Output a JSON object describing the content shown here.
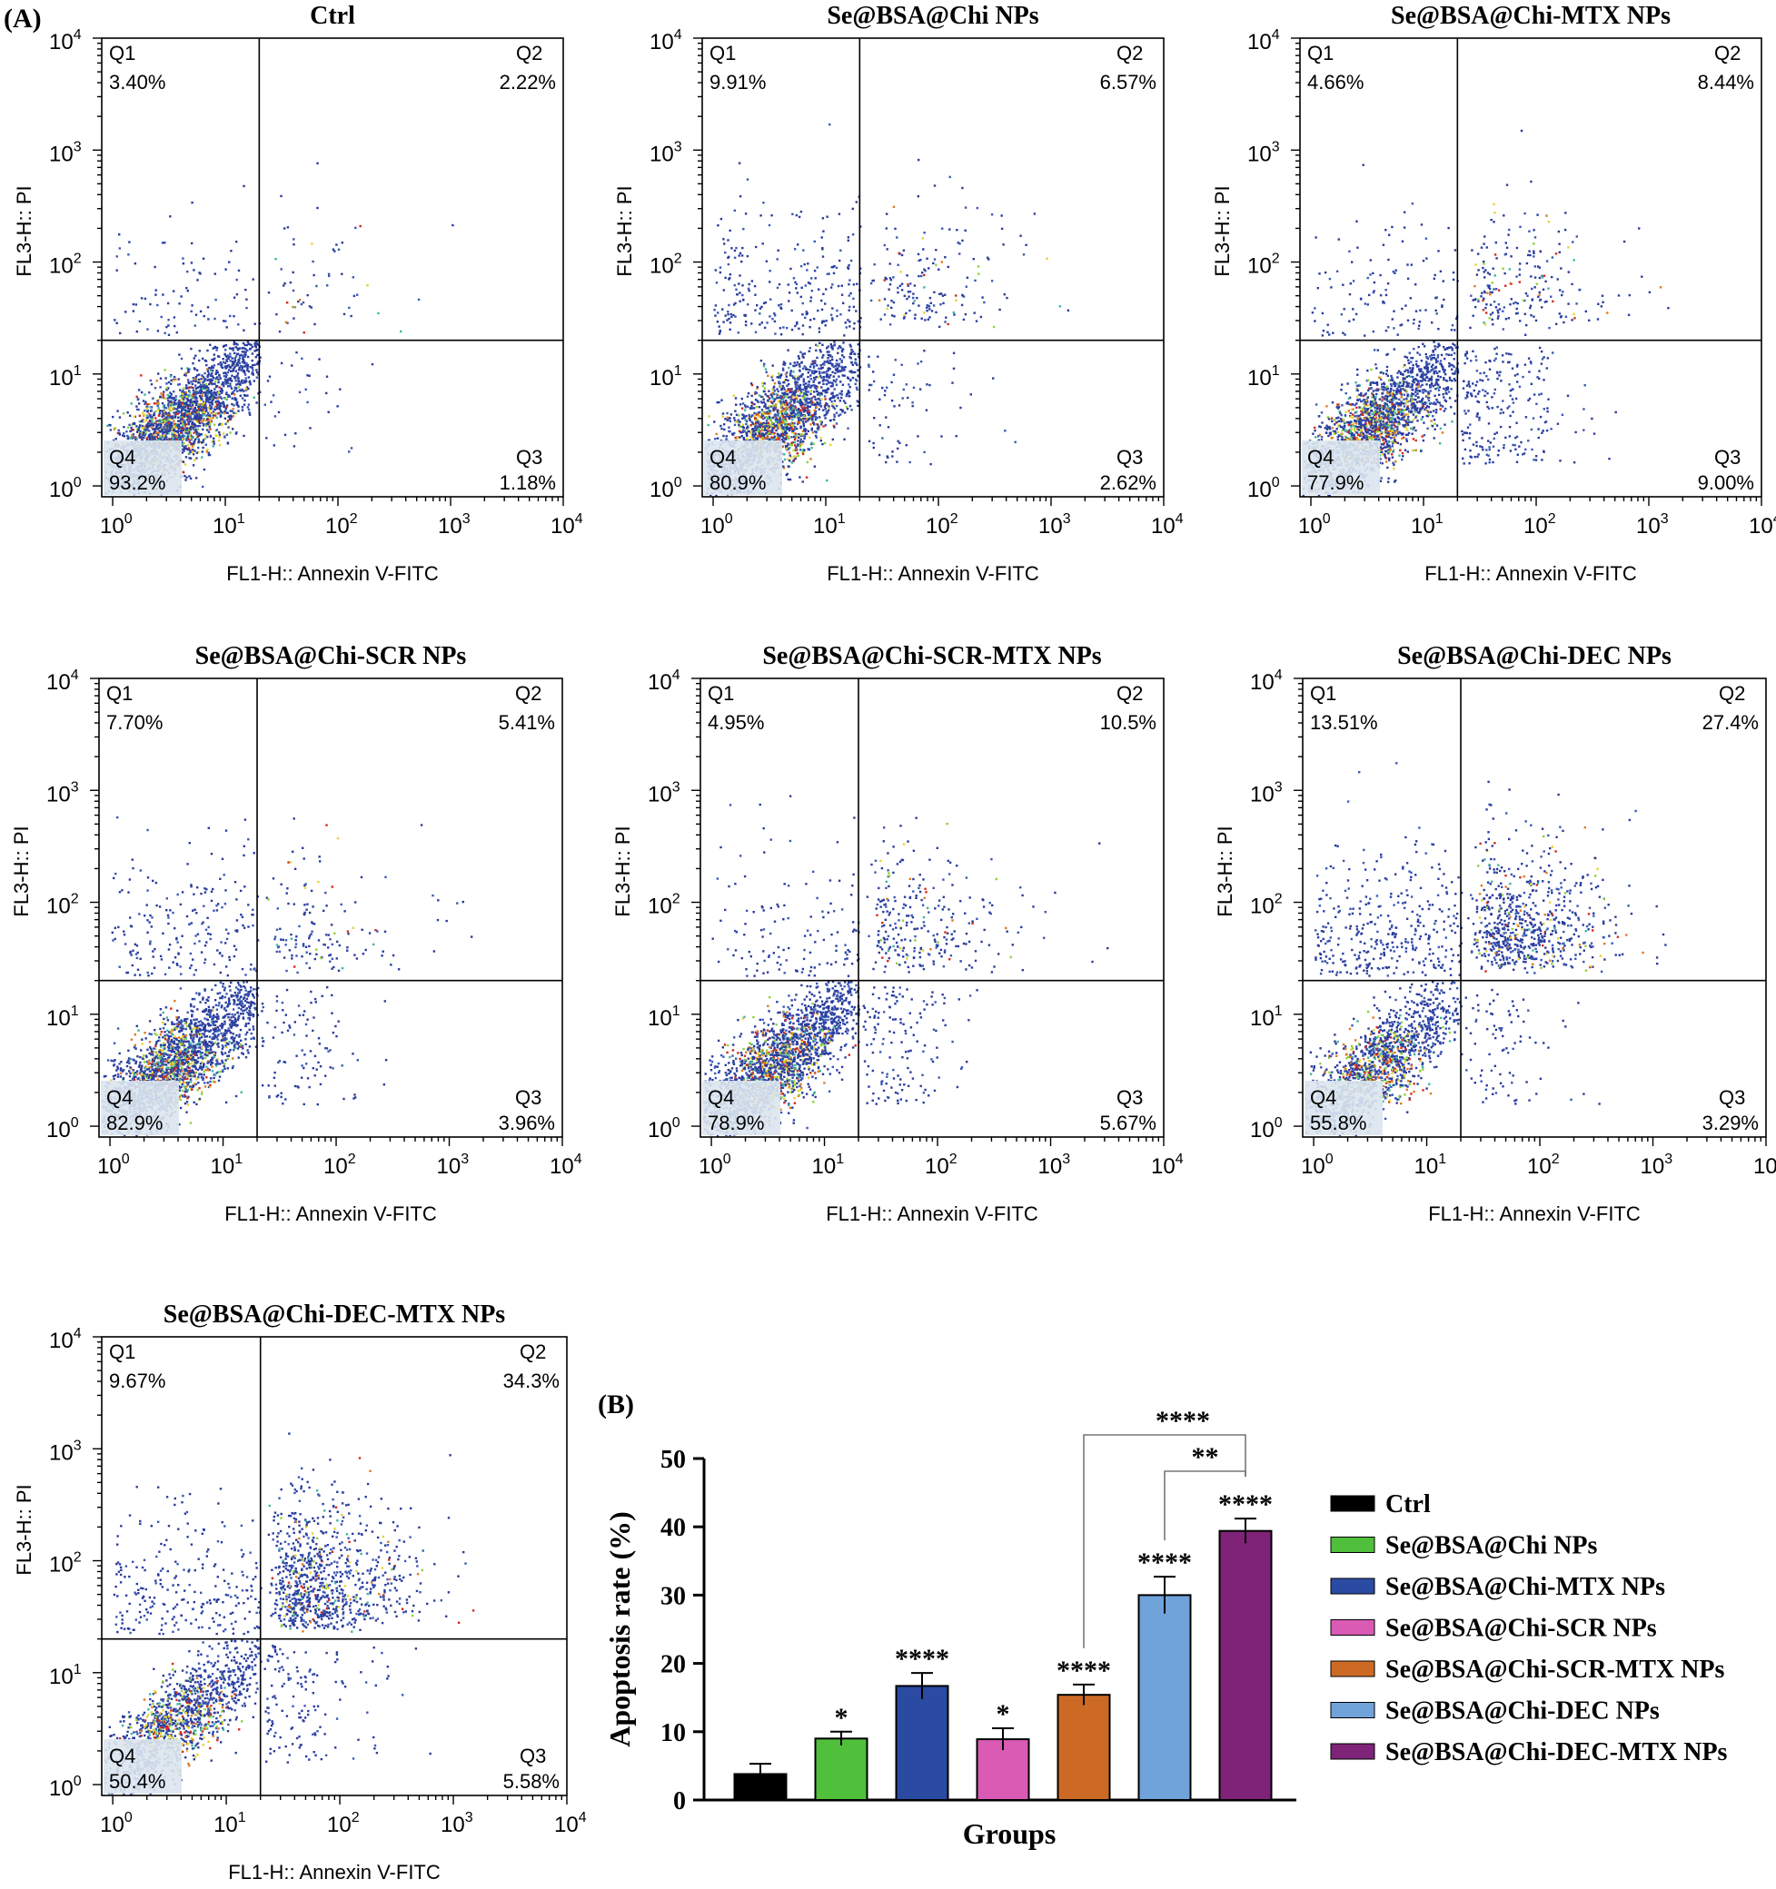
{
  "figure": {
    "label_a": "(A)",
    "label_b": "(B)"
  },
  "flow_common": {
    "xlabel": "FL1-H:: Annexin V-FITC",
    "ylabel": "FL3-H:: PI",
    "tick_base": "10",
    "tick_exponents": [
      "0",
      "1",
      "2",
      "3",
      "4"
    ],
    "quadrant_names": [
      "Q1",
      "Q2",
      "Q3",
      "Q4"
    ]
  },
  "chart_data": [
    {
      "type": "scatter",
      "title": "Ctrl",
      "x_axis": "log10",
      "xlim": [
        0.8,
        10000
      ],
      "y_axis": "log10",
      "ylim": [
        0.8,
        10000
      ],
      "gate": [
        20,
        20
      ],
      "quadrants": {
        "Q1": "3.40%",
        "Q2": "2.22%",
        "Q3": "1.18%",
        "Q4": "93.2%"
      }
    },
    {
      "type": "scatter",
      "title": "Se@BSA@Chi NPs",
      "x_axis": "log10",
      "xlim": [
        0.8,
        10000
      ],
      "y_axis": "log10",
      "ylim": [
        0.8,
        10000
      ],
      "gate": [
        20,
        20
      ],
      "quadrants": {
        "Q1": "9.91%",
        "Q2": "6.57%",
        "Q3": "2.62%",
        "Q4": "80.9%"
      }
    },
    {
      "type": "scatter",
      "title": "Se@BSA@Chi-MTX NPs",
      "x_axis": "log10",
      "xlim": [
        0.8,
        10000
      ],
      "y_axis": "log10",
      "ylim": [
        0.8,
        10000
      ],
      "gate": [
        20,
        20
      ],
      "quadrants": {
        "Q1": "4.66%",
        "Q2": "8.44%",
        "Q3": "9.00%",
        "Q4": "77.9%"
      }
    },
    {
      "type": "scatter",
      "title": "Se@BSA@Chi-SCR NPs",
      "x_axis": "log10",
      "xlim": [
        0.8,
        10000
      ],
      "y_axis": "log10",
      "ylim": [
        0.8,
        10000
      ],
      "gate": [
        20,
        20
      ],
      "quadrants": {
        "Q1": "7.70%",
        "Q2": "5.41%",
        "Q3": "3.96%",
        "Q4": "82.9%"
      }
    },
    {
      "type": "scatter",
      "title": "Se@BSA@Chi-SCR-MTX NPs",
      "x_axis": "log10",
      "xlim": [
        0.8,
        10000
      ],
      "y_axis": "log10",
      "ylim": [
        0.8,
        10000
      ],
      "gate": [
        20,
        20
      ],
      "quadrants": {
        "Q1": "4.95%",
        "Q2": "10.5%",
        "Q3": "5.67%",
        "Q4": "78.9%"
      }
    },
    {
      "type": "scatter",
      "title": "Se@BSA@Chi-DEC NPs",
      "x_axis": "log10",
      "xlim": [
        0.8,
        10000
      ],
      "y_axis": "log10",
      "ylim": [
        0.8,
        10000
      ],
      "gate": [
        20,
        20
      ],
      "quadrants": {
        "Q1": "13.51%",
        "Q2": "27.4%",
        "Q3": "3.29%",
        "Q4": "55.8%"
      }
    },
    {
      "type": "scatter",
      "title": "Se@BSA@Chi-DEC-MTX NPs",
      "x_axis": "log10",
      "xlim": [
        0.8,
        10000
      ],
      "y_axis": "log10",
      "ylim": [
        0.8,
        10000
      ],
      "gate": [
        20,
        20
      ],
      "quadrants": {
        "Q1": "9.67%",
        "Q2": "34.3%",
        "Q3": "5.58%",
        "Q4": "50.4%"
      }
    },
    {
      "type": "bar",
      "title": "",
      "xlabel": "Groups",
      "ylabel": "Apoptosis rate (%)",
      "ylim": [
        0,
        50
      ],
      "yticks": [
        "0",
        "10",
        "20",
        "30",
        "40",
        "50"
      ],
      "categories": [
        "Ctrl",
        "Se@BSA@Chi NPs",
        "Se@BSA@Chi-MTX NPs",
        "Se@BSA@Chi-SCR NPs",
        "Se@BSA@Chi-SCR-MTX NPs",
        "Se@BSA@Chi-DEC NPs",
        "Se@BSA@Chi-DEC-MTX NPs"
      ],
      "values": [
        3.8,
        9.0,
        16.7,
        8.9,
        15.4,
        30.0,
        39.4
      ],
      "errors": [
        1.5,
        1.0,
        1.9,
        1.6,
        1.5,
        2.7,
        1.8
      ],
      "colors": [
        "#000000",
        "#4fbf3c",
        "#2b4ba3",
        "#d95bb4",
        "#cc6a25",
        "#6fa3da",
        "#7e2378"
      ],
      "significance": [
        "",
        "*",
        "****",
        "*",
        "****",
        "****",
        "****"
      ],
      "comparisons": [
        {
          "from": 4,
          "to": 6,
          "label": "****"
        },
        {
          "from": 5,
          "to": 6,
          "label": "**"
        }
      ],
      "legend_position": "right"
    }
  ]
}
